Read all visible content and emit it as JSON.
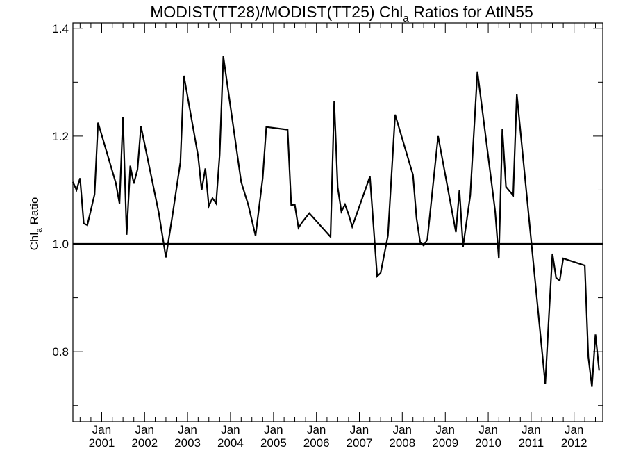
{
  "chart_data": {
    "type": "line",
    "title_main": "MODIST(TT28)/MODIST(TT25)  Chl",
    "title_sub": "a",
    "title_tail": " Ratios for AtlN55",
    "ylabel_main": "Chl",
    "ylabel_sub": "a",
    "ylabel_tail": " Ratio",
    "xlim": [
      "2000-05-01",
      "2012-09-01"
    ],
    "ylim": [
      0.67,
      1.41
    ],
    "y_ticks": [
      {
        "value": 0.8,
        "label": "0.8"
      },
      {
        "value": 1.0,
        "label": "1.0"
      },
      {
        "value": 1.2,
        "label": "1.2"
      },
      {
        "value": 1.4,
        "label": "1.4"
      }
    ],
    "x_ticks": [
      {
        "date": "2001-01-01",
        "month": "Jan",
        "year": "2001"
      },
      {
        "date": "2002-01-01",
        "month": "Jan",
        "year": "2002"
      },
      {
        "date": "2003-01-01",
        "month": "Jan",
        "year": "2003"
      },
      {
        "date": "2004-01-01",
        "month": "Jan",
        "year": "2004"
      },
      {
        "date": "2005-01-01",
        "month": "Jan",
        "year": "2005"
      },
      {
        "date": "2006-01-01",
        "month": "Jan",
        "year": "2006"
      },
      {
        "date": "2007-01-01",
        "month": "Jan",
        "year": "2007"
      },
      {
        "date": "2008-01-01",
        "month": "Jan",
        "year": "2008"
      },
      {
        "date": "2009-01-01",
        "month": "Jan",
        "year": "2009"
      },
      {
        "date": "2010-01-01",
        "month": "Jan",
        "year": "2010"
      },
      {
        "date": "2011-01-01",
        "month": "Jan",
        "year": "2011"
      },
      {
        "date": "2012-01-01",
        "month": "Jan",
        "year": "2012"
      }
    ],
    "reference_line": 1.0,
    "grid": false,
    "line_color": "#000000",
    "series": [
      {
        "x": [
          "2000-05-01",
          "2000-06-01",
          "2000-07-01",
          "2000-08-01",
          "2000-09-01",
          "2000-11-01",
          "2000-12-01",
          "2001-05-01",
          "2001-06-01",
          "2001-07-01",
          "2001-08-01",
          "2001-09-01",
          "2001-10-01",
          "2001-11-01",
          "2001-12-01",
          "2002-05-01",
          "2002-07-01",
          "2002-09-01",
          "2002-11-01",
          "2002-12-01",
          "2003-04-01",
          "2003-05-01",
          "2003-06-01",
          "2003-07-01",
          "2003-08-01",
          "2003-09-01",
          "2003-10-01",
          "2003-11-01",
          "2004-04-01",
          "2004-06-01",
          "2004-08-01",
          "2004-10-01",
          "2004-11-01",
          "2005-05-01",
          "2005-06-01",
          "2005-07-01",
          "2005-08-01",
          "2005-09-01",
          "2005-11-01",
          "2006-05-01",
          "2006-06-01",
          "2006-07-01",
          "2006-08-01",
          "2006-09-01",
          "2006-10-01",
          "2006-11-01",
          "2007-04-01",
          "2007-06-01",
          "2007-07-01",
          "2007-09-01",
          "2007-11-01",
          "2008-04-01",
          "2008-05-01",
          "2008-06-01",
          "2008-07-01",
          "2008-08-01",
          "2008-11-01",
          "2009-04-01",
          "2009-05-01",
          "2009-06-01",
          "2009-08-01",
          "2009-10-01",
          "2010-03-01",
          "2010-04-01",
          "2010-05-01",
          "2010-06-01",
          "2010-08-01",
          "2010-09-01",
          "2011-05-01",
          "2011-06-01",
          "2011-07-01",
          "2011-08-01",
          "2011-09-01",
          "2011-10-01",
          "2012-04-01",
          "2012-05-01",
          "2012-06-01",
          "2012-07-01",
          "2012-08-01"
        ],
        "y": [
          1.115,
          1.1,
          1.122,
          1.038,
          1.035,
          1.092,
          1.225,
          1.113,
          1.075,
          1.235,
          1.017,
          1.145,
          1.112,
          1.138,
          1.218,
          1.058,
          0.975,
          1.062,
          1.152,
          1.312,
          1.163,
          1.1,
          1.14,
          1.07,
          1.085,
          1.075,
          1.165,
          1.348,
          1.115,
          1.072,
          1.015,
          1.122,
          1.217,
          1.212,
          1.072,
          1.073,
          1.03,
          1.04,
          1.057,
          1.013,
          1.265,
          1.105,
          1.06,
          1.073,
          1.055,
          1.032,
          1.125,
          0.94,
          0.946,
          1.015,
          1.24,
          1.128,
          1.048,
          1.003,
          0.997,
          1.008,
          1.2,
          1.022,
          1.1,
          0.995,
          1.09,
          1.32,
          1.06,
          0.973,
          1.213,
          1.106,
          1.09,
          1.278,
          0.74,
          0.865,
          0.982,
          0.937,
          0.932,
          0.973,
          0.96,
          0.79,
          0.735,
          0.832,
          0.765
        ]
      }
    ]
  }
}
